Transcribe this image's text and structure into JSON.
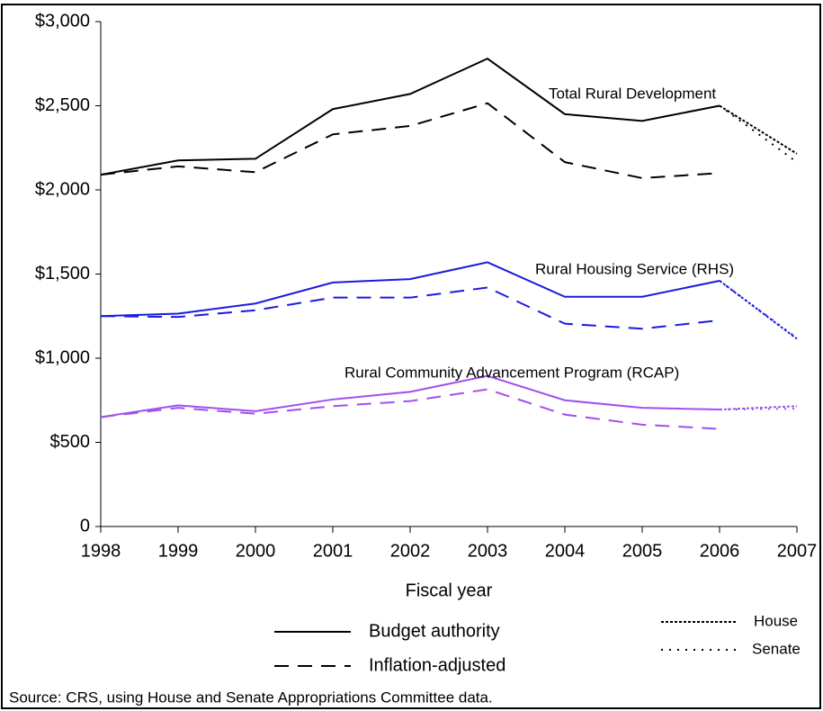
{
  "chart_data": {
    "type": "line",
    "x": [
      1998,
      1999,
      2000,
      2001,
      2002,
      2003,
      2004,
      2005,
      2006,
      2007
    ],
    "xlim": [
      1998,
      2007
    ],
    "xlabel": "Fiscal year",
    "ylim": [
      0,
      3000
    ],
    "yticks": [
      0,
      {
        "value": 500,
        "label": "$500"
      },
      {
        "value": 1000,
        "label": "$1,000"
      },
      {
        "value": 1500,
        "label": "$1,500"
      },
      {
        "value": 2000,
        "label": "$2,000"
      },
      {
        "value": 2500,
        "label": "$2,500"
      },
      {
        "value": 3000,
        "label": "$3,000"
      }
    ],
    "legend": [
      {
        "name": "Budget authority",
        "style": "solid"
      },
      {
        "name": "Inflation-adjusted",
        "style": "dashed"
      },
      {
        "name": "House",
        "style": "dense-dotted"
      },
      {
        "name": "Senate",
        "style": "loose-dotted"
      }
    ],
    "groups": [
      {
        "name": "Total Rural Development",
        "color": "#000000",
        "series": [
          {
            "style": "solid",
            "values": [
              2090,
              2175,
              2185,
              2480,
              2570,
              2780,
              2450,
              2410,
              2500,
              null
            ]
          },
          {
            "style": "dashed",
            "values": [
              2090,
              2140,
              2105,
              2330,
              2380,
              2515,
              2165,
              2070,
              2100,
              null
            ]
          },
          {
            "style": "dense-dotted",
            "values": [
              null,
              null,
              null,
              null,
              null,
              null,
              null,
              null,
              2500,
              2215
            ]
          },
          {
            "style": "loose-dotted",
            "values": [
              null,
              null,
              null,
              null,
              null,
              null,
              null,
              null,
              2500,
              2165
            ]
          }
        ]
      },
      {
        "name": "Rural Housing Service (RHS)",
        "color": "#1a1ae0",
        "series": [
          {
            "style": "solid",
            "values": [
              1250,
              1265,
              1325,
              1450,
              1470,
              1570,
              1365,
              1365,
              1460,
              null
            ]
          },
          {
            "style": "dashed",
            "values": [
              1250,
              1245,
              1285,
              1360,
              1360,
              1420,
              1205,
              1175,
              1225,
              null
            ]
          },
          {
            "style": "dense-dotted",
            "values": [
              null,
              null,
              null,
              null,
              null,
              null,
              null,
              null,
              1460,
              1115
            ]
          },
          {
            "style": "loose-dotted",
            "values": [
              null,
              null,
              null,
              null,
              null,
              null,
              null,
              null,
              1460,
              1120
            ]
          }
        ]
      },
      {
        "name": "Rural Community Advancement Program (RCAP)",
        "color": "#a050ec",
        "series": [
          {
            "style": "solid",
            "values": [
              650,
              720,
              685,
              755,
              800,
              895,
              750,
              705,
              695,
              null
            ]
          },
          {
            "style": "dashed",
            "values": [
              650,
              705,
              670,
              715,
              745,
              815,
              665,
              605,
              580,
              null
            ]
          },
          {
            "style": "dense-dotted",
            "values": [
              null,
              null,
              null,
              null,
              null,
              null,
              null,
              null,
              695,
              715
            ]
          },
          {
            "style": "loose-dotted",
            "values": [
              null,
              null,
              null,
              null,
              null,
              null,
              null,
              null,
              695,
              700
            ]
          }
        ]
      }
    ],
    "note": "Source: CRS, using House and Senate Appropriations Committee data."
  }
}
